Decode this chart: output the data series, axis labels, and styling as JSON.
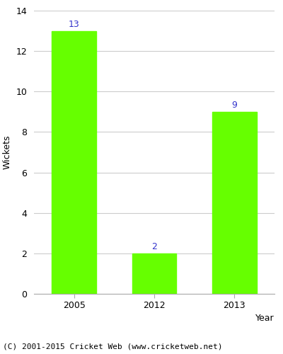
{
  "categories": [
    "2005",
    "2012",
    "2013"
  ],
  "values": [
    13,
    2,
    9
  ],
  "bar_color": "#66ff00",
  "bar_width": 0.55,
  "ylabel": "Wickets",
  "xlabel": "Year",
  "ylim": [
    0,
    14
  ],
  "yticks": [
    0,
    2,
    4,
    6,
    8,
    10,
    12,
    14
  ],
  "annotation_color": "#3333cc",
  "annotation_fontsize": 9,
  "ylabel_fontsize": 9,
  "xlabel_fontsize": 9,
  "tick_fontsize": 9,
  "footer_text": "(C) 2001-2015 Cricket Web (www.cricketweb.net)",
  "footer_fontsize": 8,
  "background_color": "#ffffff",
  "grid_color": "#cccccc",
  "spine_color": "#aaaaaa"
}
